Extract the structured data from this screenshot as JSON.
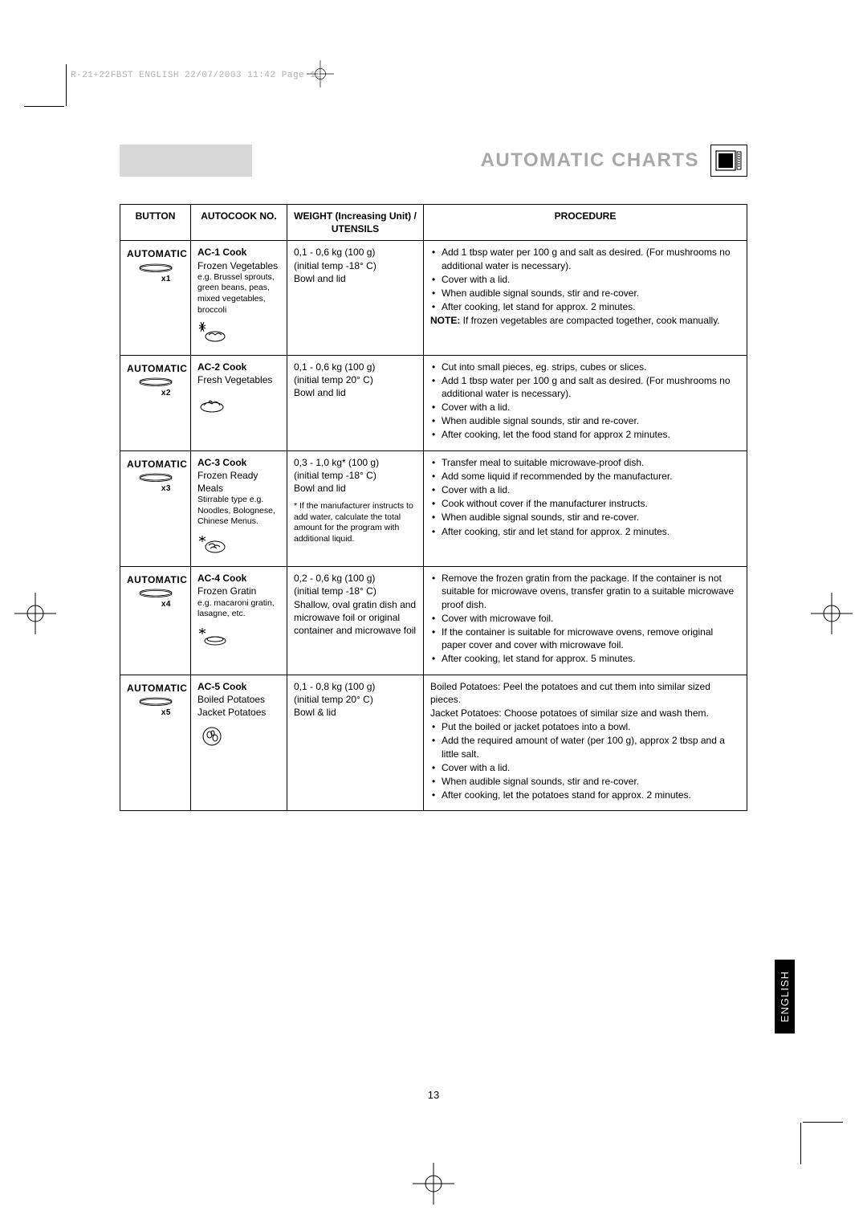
{
  "header_info": "R-21+22FBST ENGLISH  22/07/2003  11:42  Page 13",
  "title": "AUTOMATIC CHARTS",
  "columns": {
    "button": "BUTTON",
    "autocook": "AUTOCOOK NO.",
    "weight": "WEIGHT (Increasing Unit) / UTENSILS",
    "procedure": "PROCEDURE"
  },
  "automatic_label": "AUTOMATIC",
  "rows": [
    {
      "x": "x1",
      "ac_title": "AC-1 Cook",
      "ac_sub": "Frozen Vegetables",
      "ac_eg": "e.g. Brussel sprouts, green beans, peas, mixed vegetables, broccoli",
      "icon": "frozen-veg",
      "weight_main": "0,1 - 0,6 kg (100 g)",
      "weight_temp": "(initial temp -18° C)",
      "weight_utensil": "Bowl and lid",
      "weight_note": "",
      "proc_pre": "",
      "proc_items": [
        "Add 1 tbsp water per 100 g and salt as desired. (For mushrooms no additional water is necessary).",
        "Cover with a lid.",
        "When audible signal sounds, stir and re-cover.",
        "After cooking, let stand for approx. 2 minutes."
      ],
      "proc_note": "If frozen vegetables are compacted together, cook manually."
    },
    {
      "x": "x2",
      "ac_title": "AC-2 Cook",
      "ac_sub": "Fresh Vegetables",
      "ac_eg": "",
      "icon": "fresh-veg",
      "weight_main": "0,1 - 0,6 kg (100 g)",
      "weight_temp": "(initial temp 20° C)",
      "weight_utensil": "Bowl and lid",
      "weight_note": "",
      "proc_pre": "",
      "proc_items": [
        "Cut into small pieces, eg. strips, cubes or slices.",
        "Add 1 tbsp water per 100 g and salt as desired. (For mushrooms no additional water is necessary).",
        "Cover with a lid.",
        "When audible signal sounds, stir and re-cover.",
        "After cooking, let the food stand for approx 2 minutes."
      ],
      "proc_note": ""
    },
    {
      "x": "x3",
      "ac_title": "AC-3 Cook",
      "ac_sub": "Frozen Ready Meals",
      "ac_eg": "Stirrable type e.g. Noodles, Bolognese, Chinese Menus.",
      "icon": "ready-meal",
      "weight_main": "0,3 - 1,0 kg* (100 g)",
      "weight_temp": "(initial temp -18° C)",
      "weight_utensil": "Bowl and lid",
      "weight_note": "* If the manufacturer instructs to add water, calculate the total amount for the program with additional liquid.",
      "proc_pre": "",
      "proc_items": [
        "Transfer meal to suitable microwave-proof dish.",
        "Add some liquid if recommended by the manufacturer.",
        "Cover with a lid.",
        "Cook without cover if the manufacturer instructs.",
        "When audible signal sounds, stir and re-cover.",
        "After cooking, stir and let stand for approx. 2 minutes."
      ],
      "proc_note": ""
    },
    {
      "x": "x4",
      "ac_title": "AC-4 Cook",
      "ac_sub": "Frozen Gratin",
      "ac_eg": "e.g. macaroni gratin, lasagne, etc.",
      "icon": "gratin",
      "weight_main": "0,2 - 0,6 kg (100 g)",
      "weight_temp": "(initial temp -18° C)",
      "weight_utensil": "Shallow, oval gratin dish and microwave foil or original container and microwave foil",
      "weight_note": "",
      "proc_pre": "",
      "proc_items": [
        "Remove the frozen gratin from the package. If the container is not suitable for microwave ovens, transfer gratin to a suitable microwave proof dish.",
        "Cover with microwave foil.",
        "If the container is suitable for microwave ovens, remove original paper cover and cover with microwave foil.",
        "After cooking, let stand for approx. 5 minutes."
      ],
      "proc_note": ""
    },
    {
      "x": "x5",
      "ac_title": "AC-5 Cook",
      "ac_sub": "Boiled Potatoes Jacket Potatoes",
      "ac_eg": "",
      "icon": "potatoes",
      "weight_main": "0,1 - 0,8 kg (100 g)",
      "weight_temp": "(initial temp 20° C)",
      "weight_utensil": "Bowl & lid",
      "weight_note": "",
      "proc_pre": "Boiled Potatoes: Peel the potatoes and cut them into similar sized pieces.\nJacket Potatoes: Choose potatoes of similar size and wash them.",
      "proc_items": [
        "Put the boiled or jacket potatoes into a bowl.",
        "Add the required amount of water (per 100 g), approx 2 tbsp and a little salt.",
        "Cover with a lid.",
        "When audible signal sounds, stir and re-cover.",
        "After cooking, let the potatoes stand for approx. 2 minutes."
      ],
      "proc_note": ""
    }
  ],
  "note_label": "NOTE:",
  "page_num": "13",
  "lang_tab": "ENGLISH",
  "colors": {
    "title_grey": "#a8a8a8",
    "swatch_grey": "#d7d7d7",
    "header_grey": "#b0b0b0"
  }
}
